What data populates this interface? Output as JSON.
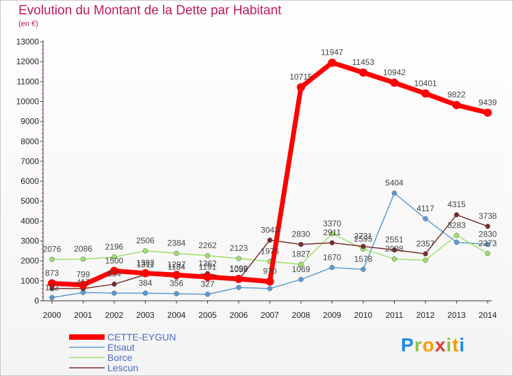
{
  "title": "Evolution du Montant de la Dette par Habitant",
  "subtitle": "(en €)",
  "brand": [
    "P",
    "r",
    "o",
    "x",
    "i",
    "t",
    "i"
  ],
  "brand_colors": [
    "#1e88e5",
    "#8bc34a",
    "#ff9800",
    "#e53935",
    "#8bc34a",
    "#ff9800",
    "#1e88e5"
  ],
  "chart_data": {
    "type": "line",
    "x": [
      "2000",
      "2001",
      "2002",
      "2003",
      "2004",
      "2005",
      "2006",
      "2007",
      "2008",
      "2009",
      "2010",
      "2011",
      "2012",
      "2013",
      "2014"
    ],
    "ylim": [
      0,
      13000
    ],
    "yticks": [
      0,
      1000,
      2000,
      3000,
      4000,
      5000,
      6000,
      7000,
      8000,
      9000,
      10000,
      11000,
      12000,
      13000
    ],
    "grid": false,
    "legend_position": "bottom-left",
    "series": [
      {
        "name": "Etsaut",
        "color": "#5b9bd5",
        "width": 1.5,
        "marker": 3.5,
        "values": [
          162,
          417,
          384,
          384,
          356,
          327,
          670,
          615,
          1069,
          1670,
          1578,
          5404,
          4117,
          2939,
          2830
        ],
        "labels": [
          "162",
          "417",
          "",
          "384",
          "356",
          "327",
          "",
          "",
          "1069",
          "1670",
          "1578",
          "5404",
          "4117",
          "",
          "2830"
        ]
      },
      {
        "name": "Borce",
        "color": "#9ee06b",
        "width": 1.5,
        "marker": 3.5,
        "values": [
          2076,
          2086,
          2196,
          2506,
          2384,
          2262,
          2123,
          1976,
          1827,
          3370,
          2595,
          2098,
          2037,
          3283,
          2373
        ],
        "labels": [
          "2076",
          "2086",
          "2196",
          "2506",
          "2384",
          "2262",
          "2123",
          "1976",
          "1827",
          "3370",
          "2595",
          "2098",
          "",
          "3283",
          "2373"
        ]
      },
      {
        "name": "Lescun",
        "color": "#7b2c2c",
        "width": 1.5,
        "marker": 3.5,
        "values": [
          611,
          612,
          834,
          1311,
          1184,
          1362,
          1059,
          3043,
          2830,
          2911,
          2731,
          2551,
          2357,
          4315,
          3738
        ],
        "labels": [
          "",
          "",
          "834",
          "1311",
          "1184",
          "1362",
          "1059",
          "3043",
          "2830",
          "2911",
          "2731",
          "2551",
          "2357",
          "4315",
          "3738"
        ]
      },
      {
        "name": "CETTE-EYGUN",
        "color": "#ff0000",
        "width": 7,
        "marker": 6,
        "values": [
          873,
          799,
          1500,
          1383,
          1297,
          1191,
          1098,
          970,
          10715,
          11947,
          11453,
          10942,
          10401,
          9822,
          9439
        ],
        "labels": [
          "873",
          "799",
          "1500",
          "1383",
          "1297",
          "1191",
          "1098",
          "970",
          "10715",
          "11947",
          "11453",
          "10942",
          "10401",
          "9822",
          "9439"
        ]
      }
    ]
  }
}
